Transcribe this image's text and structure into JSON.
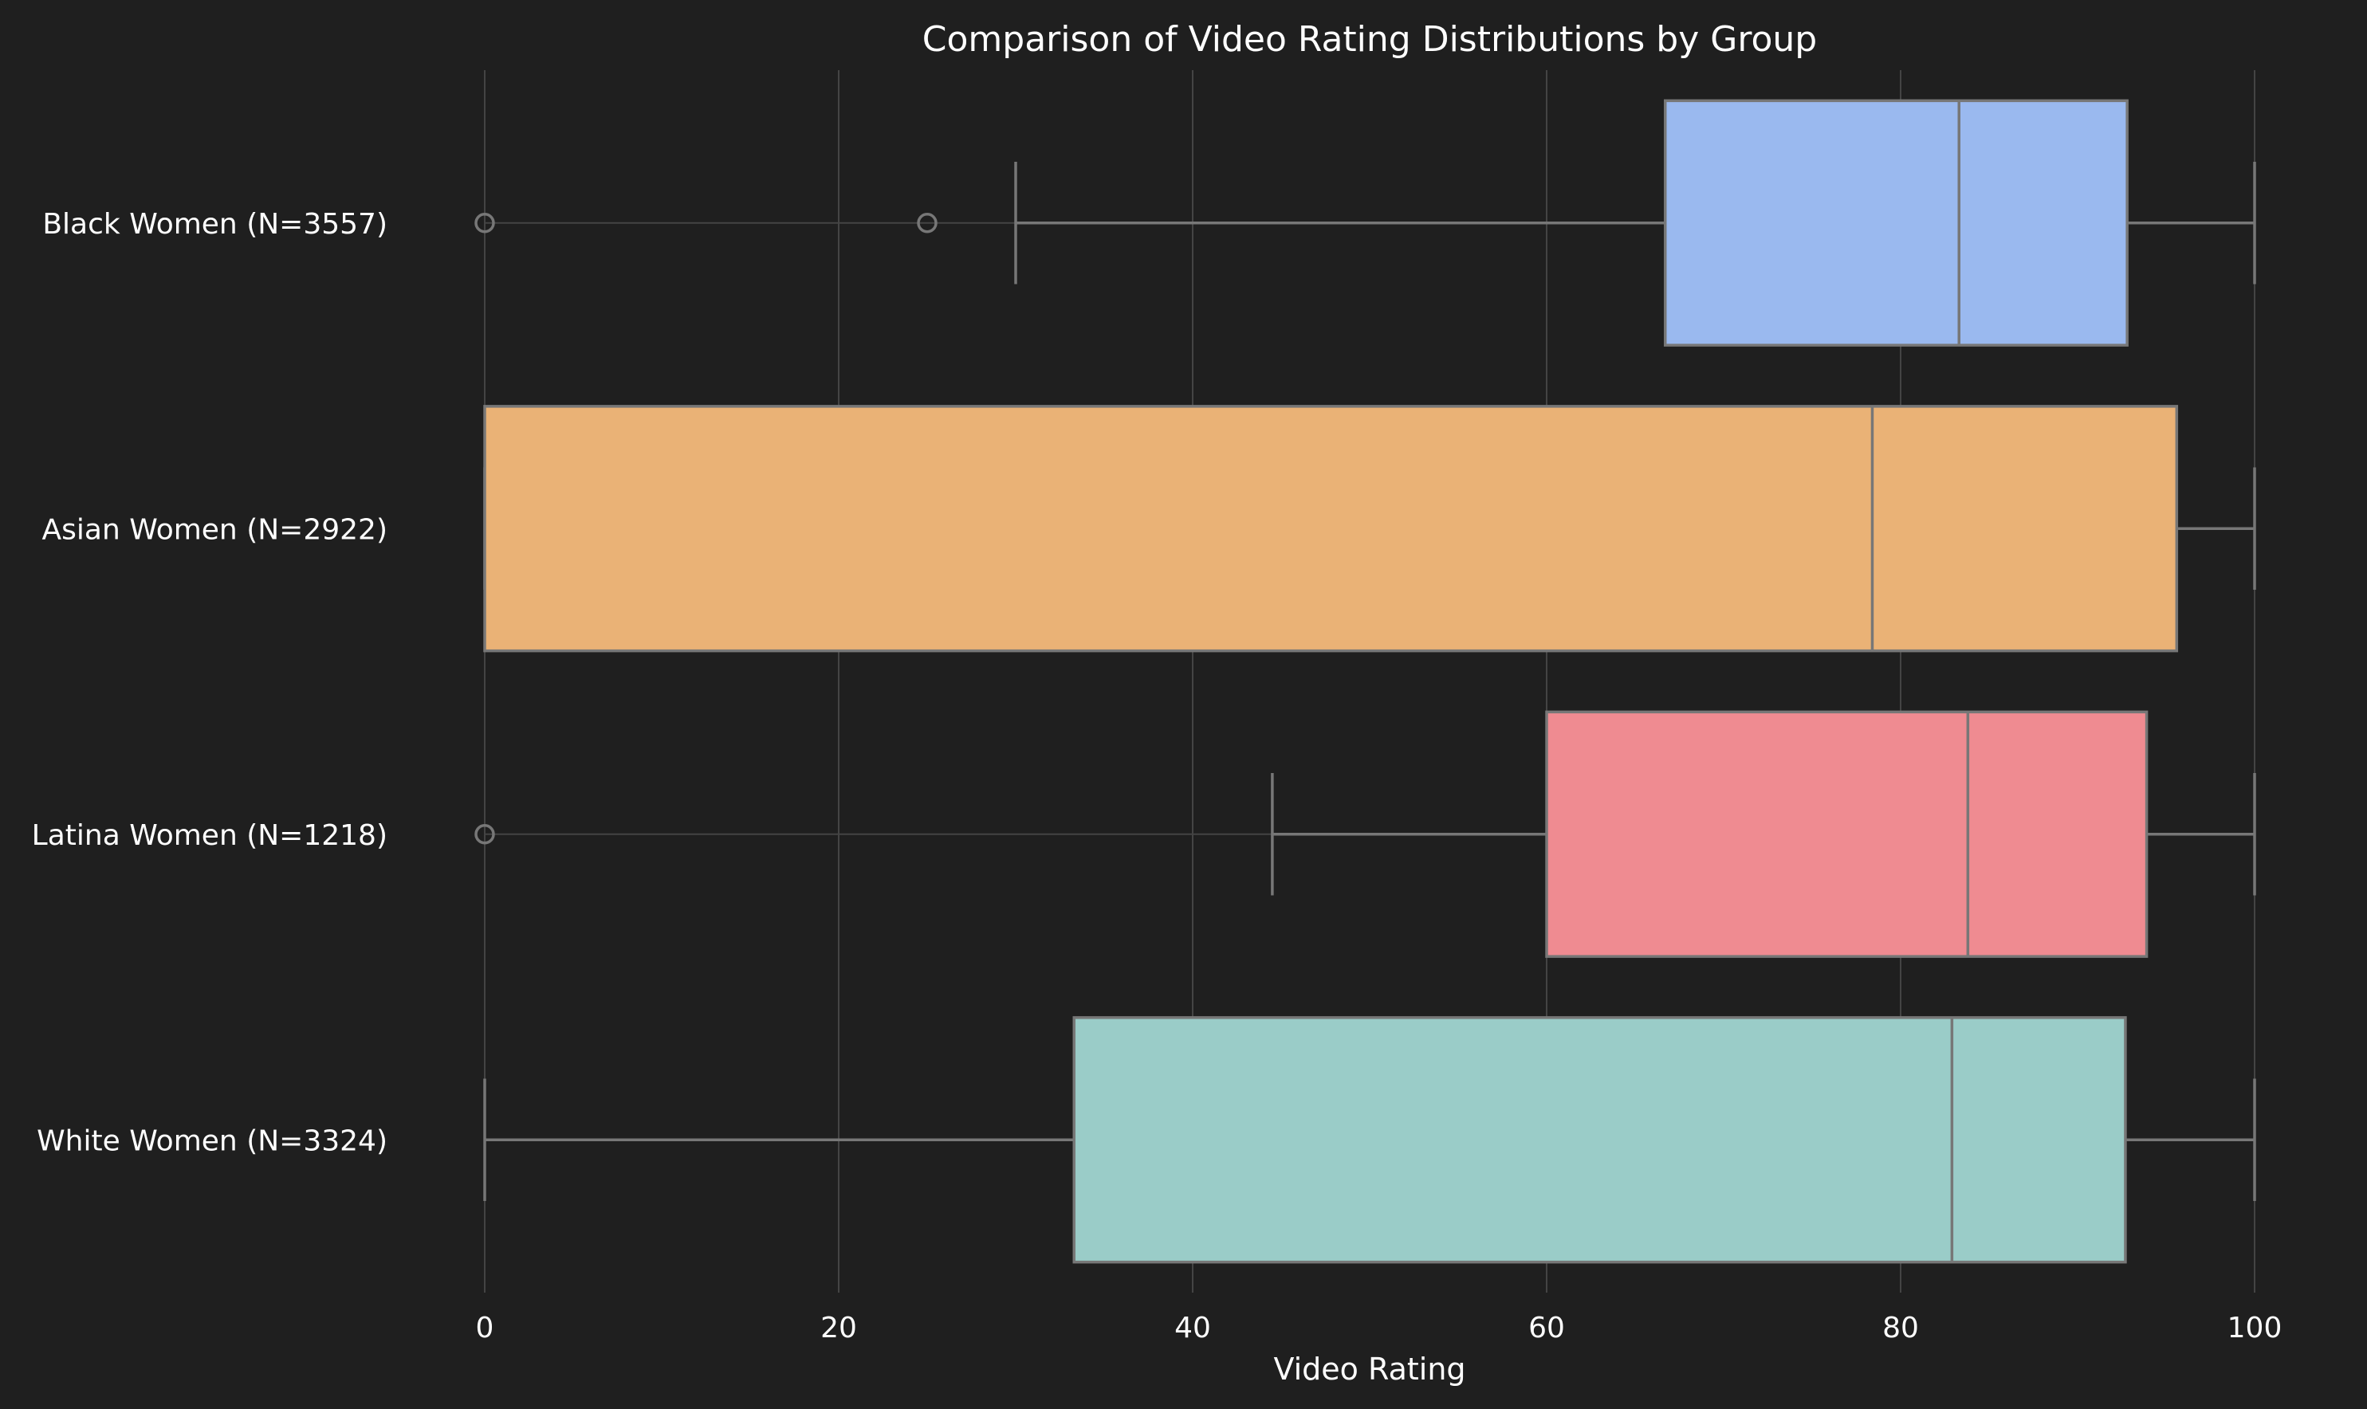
{
  "chart_data": {
    "type": "boxplot",
    "title": "Comparison of Video Rating Distributions by Group",
    "xlabel": "Video Rating",
    "ylabel": "",
    "orientation": "horizontal",
    "xlim": [
      0,
      100
    ],
    "xticks": [
      0,
      20,
      40,
      60,
      80,
      100
    ],
    "grid": true,
    "background": "#1f1f1f",
    "colors": {
      "box_edge": "#777777",
      "grid": "#444444",
      "text": "#ffffff"
    },
    "groups": [
      {
        "label": "Black Women (N=3557)",
        "color": "#9ab9ef",
        "whisker_low": 30,
        "q1": 66.7,
        "median": 83.3,
        "q3": 92.8,
        "whisker_high": 100,
        "outliers": [
          0,
          25
        ]
      },
      {
        "label": "Asian Women (N=2922)",
        "color": "#eab276",
        "whisker_low": 0,
        "q1": 0,
        "median": 78.4,
        "q3": 95.6,
        "whisker_high": 100,
        "outliers": []
      },
      {
        "label": "Latina Women (N=1218)",
        "color": "#ef8b91",
        "whisker_low": 44.5,
        "q1": 60,
        "median": 83.8,
        "q3": 93.9,
        "whisker_high": 100,
        "outliers": [
          0
        ]
      },
      {
        "label": "White Women (N=3324)",
        "color": "#9accc8",
        "whisker_low": 0,
        "q1": 33.3,
        "median": 82.9,
        "q3": 92.7,
        "whisker_high": 100,
        "outliers": []
      }
    ]
  }
}
